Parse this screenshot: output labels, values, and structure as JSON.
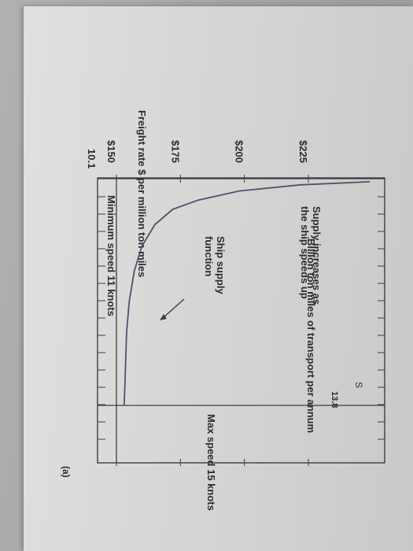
{
  "chart_data": {
    "type": "line",
    "orientation": "rotated 90 degrees clockwise",
    "title": "",
    "ylabel": "Freight rate $ per million ton miles",
    "xlabel": "Billion ton miles of transport per annum",
    "y_ticks": [
      "$150",
      "$175",
      "$200",
      "$225"
    ],
    "y_tick_values": [
      150,
      175,
      200,
      225
    ],
    "ylim": [
      140,
      250
    ],
    "x_marked_values": [
      "10.1",
      "13.8"
    ],
    "xlim": [
      10.1,
      14.8
    ],
    "grid": false,
    "series": [
      {
        "name": "S",
        "x": [
          10.15,
          10.2,
          10.3,
          10.45,
          10.6,
          10.85,
          11.2,
          11.6,
          12.1,
          12.6,
          13.1,
          13.5,
          13.8
        ],
        "y": [
          249,
          222,
          198,
          182,
          172,
          165,
          160,
          157,
          155,
          154,
          153.6,
          153.3,
          153
        ]
      }
    ],
    "vertical_lines": [
      {
        "x": 10.1,
        "label": "Minimum speed 11 knots"
      },
      {
        "x": 13.8,
        "label": "Max speed 15 knots"
      }
    ],
    "horizontal_lines": [
      {
        "y": 150
      }
    ],
    "annotations": [
      {
        "text": "Supply increases as",
        "line": 1
      },
      {
        "text": "the ship speeds up",
        "line": 2
      },
      {
        "text": "Ship supply",
        "line": 3
      },
      {
        "text": "function",
        "line": 4
      }
    ],
    "panel_label": "(a)"
  }
}
